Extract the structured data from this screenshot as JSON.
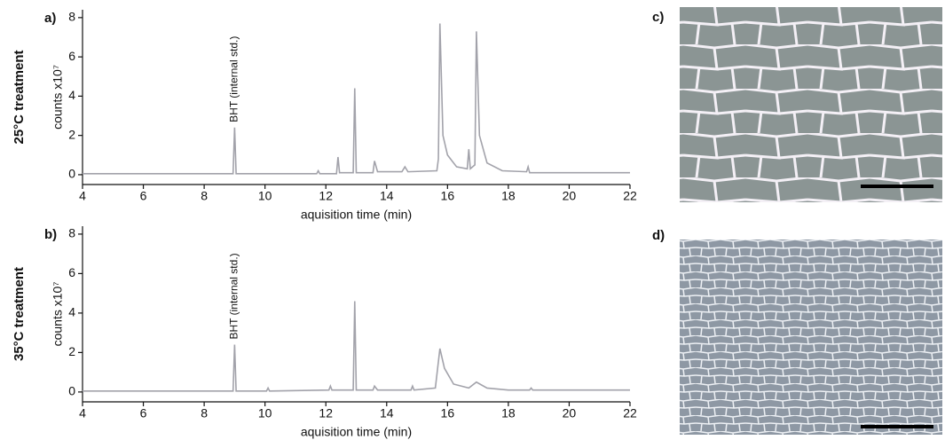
{
  "chart_data": [
    {
      "type": "line",
      "panel_label": "a)",
      "row_label": "25°C treatment",
      "x_label": "aquisition time (min)",
      "y_label": "counts x10⁷",
      "annotation": {
        "text": "BHT (internal std.)",
        "x": 9
      },
      "color": "#a2a2aa",
      "x": [
        4,
        8.95,
        9.0,
        9.05,
        11.7,
        11.75,
        11.8,
        12.35,
        12.4,
        12.45,
        12.9,
        12.95,
        13.0,
        13.55,
        13.6,
        13.7,
        14.5,
        14.6,
        14.7,
        15.65,
        15.7,
        15.75,
        15.85,
        16.0,
        16.3,
        16.65,
        16.7,
        16.75,
        16.9,
        16.95,
        17.05,
        17.3,
        17.8,
        18.6,
        18.65,
        18.7,
        22
      ],
      "values": [
        0.05,
        0.05,
        2.4,
        0.05,
        0.05,
        0.2,
        0.05,
        0.05,
        0.9,
        0.1,
        0.1,
        4.4,
        0.1,
        0.1,
        0.7,
        0.15,
        0.15,
        0.4,
        0.15,
        0.2,
        0.8,
        7.7,
        2.0,
        1.0,
        0.4,
        0.3,
        1.3,
        0.3,
        0.5,
        7.3,
        2.0,
        0.6,
        0.2,
        0.15,
        0.4,
        0.1,
        0.1
      ],
      "xlim": [
        4,
        22
      ],
      "xticks": [
        4,
        6,
        8,
        10,
        12,
        14,
        16,
        18,
        20,
        22
      ],
      "ylim": [
        -0.5,
        8.4
      ],
      "yticks": [
        0,
        2,
        4,
        6,
        8
      ]
    },
    {
      "type": "line",
      "panel_label": "b)",
      "row_label": "35°C treatment",
      "x_label": "aquisition time (min)",
      "y_label": "counts x10⁷",
      "annotation": {
        "text": "BHT (internal std.)",
        "x": 9
      },
      "color": "#a2a2aa",
      "x": [
        4,
        8.95,
        9.0,
        9.05,
        10.05,
        10.1,
        10.15,
        12.1,
        12.15,
        12.2,
        12.9,
        12.95,
        13.0,
        13.55,
        13.6,
        13.7,
        14.8,
        14.85,
        14.9,
        15.6,
        15.75,
        15.9,
        16.2,
        16.7,
        16.95,
        17.3,
        18,
        18.7,
        18.75,
        18.8,
        22
      ],
      "values": [
        0.05,
        0.05,
        2.4,
        0.05,
        0.05,
        0.2,
        0.05,
        0.1,
        0.3,
        0.1,
        0.1,
        4.6,
        0.1,
        0.1,
        0.3,
        0.1,
        0.1,
        0.3,
        0.1,
        0.2,
        2.2,
        1.2,
        0.4,
        0.2,
        0.5,
        0.2,
        0.1,
        0.1,
        0.2,
        0.1,
        0.1
      ],
      "xlim": [
        4,
        22
      ],
      "xticks": [
        4,
        6,
        8,
        10,
        12,
        14,
        16,
        18,
        20,
        22
      ],
      "ylim": [
        -0.5,
        8.4
      ],
      "yticks": [
        0,
        2,
        4,
        6,
        8
      ]
    }
  ],
  "images": [
    {
      "label": "c)"
    },
    {
      "label": "d)"
    }
  ]
}
